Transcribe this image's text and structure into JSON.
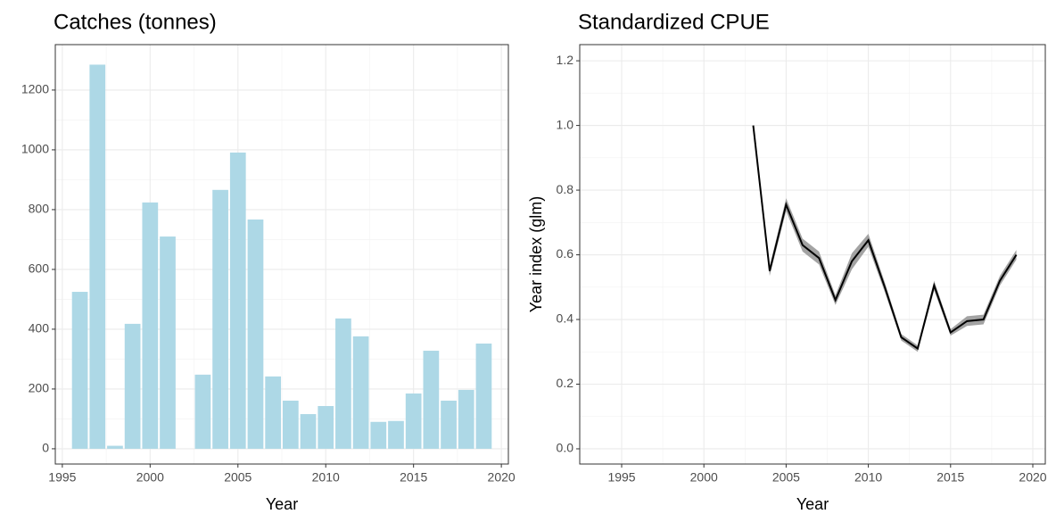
{
  "chart_data": [
    {
      "type": "bar",
      "title": "Catches (tonnes)",
      "x_label": "Year",
      "color": "#add8e6",
      "x": [
        1996,
        1997,
        1998,
        1999,
        2000,
        2001,
        2002,
        2003,
        2004,
        2005,
        2006,
        2007,
        2008,
        2009,
        2010,
        2011,
        2012,
        2013,
        2014,
        2015,
        2016,
        2017,
        2018,
        2019
      ],
      "values": [
        525,
        1285,
        10,
        418,
        824,
        710,
        0,
        248,
        866,
        991,
        767,
        242,
        161,
        116,
        143,
        436,
        376,
        90,
        93,
        185,
        328,
        161,
        197,
        352
      ],
      "xlim": [
        1994.6,
        2020.4
      ],
      "xticks": [
        1995,
        2000,
        2005,
        2010,
        2015,
        2020
      ],
      "ylim": [
        -51,
        1352
      ],
      "yticks": [
        0,
        200,
        400,
        600,
        800,
        1000,
        1200
      ],
      "grid": true
    },
    {
      "type": "line",
      "title": "Standardized CPUE",
      "x_label": "Year",
      "y_label": "Year index (glm)",
      "color": "#000000",
      "band_color": "#999999",
      "x": [
        2003,
        2004,
        2005,
        2006,
        2007,
        2008,
        2009,
        2010,
        2011,
        2012,
        2013,
        2014,
        2015,
        2016,
        2017,
        2018,
        2019
      ],
      "values": [
        1.0,
        0.55,
        0.755,
        0.63,
        0.59,
        0.46,
        0.58,
        0.645,
        0.5,
        0.345,
        0.31,
        0.505,
        0.36,
        0.395,
        0.4,
        0.52,
        0.6
      ],
      "lower": [
        1.0,
        0.535,
        0.735,
        0.61,
        0.57,
        0.445,
        0.555,
        0.625,
        0.485,
        0.335,
        0.3,
        0.49,
        0.35,
        0.38,
        0.385,
        0.505,
        0.585
      ],
      "upper": [
        1.0,
        0.565,
        0.775,
        0.65,
        0.61,
        0.475,
        0.605,
        0.665,
        0.515,
        0.355,
        0.32,
        0.52,
        0.37,
        0.41,
        0.415,
        0.535,
        0.615
      ],
      "xlim": [
        1992.45,
        2020.76
      ],
      "xticks": [
        1995,
        2000,
        2005,
        2010,
        2015,
        2020
      ],
      "ylim": [
        -0.047,
        1.25
      ],
      "yticks": [
        {
          "value": 0,
          "label": "0.0"
        },
        {
          "value": 0.2,
          "label": "0.2"
        },
        {
          "value": 0.4,
          "label": "0.4"
        },
        {
          "value": 0.6,
          "label": "0.6"
        },
        {
          "value": 0.8,
          "label": "0.8"
        },
        {
          "value": 1,
          "label": "1.0"
        },
        {
          "value": 1.2,
          "label": "1.2"
        }
      ],
      "grid": true
    }
  ]
}
